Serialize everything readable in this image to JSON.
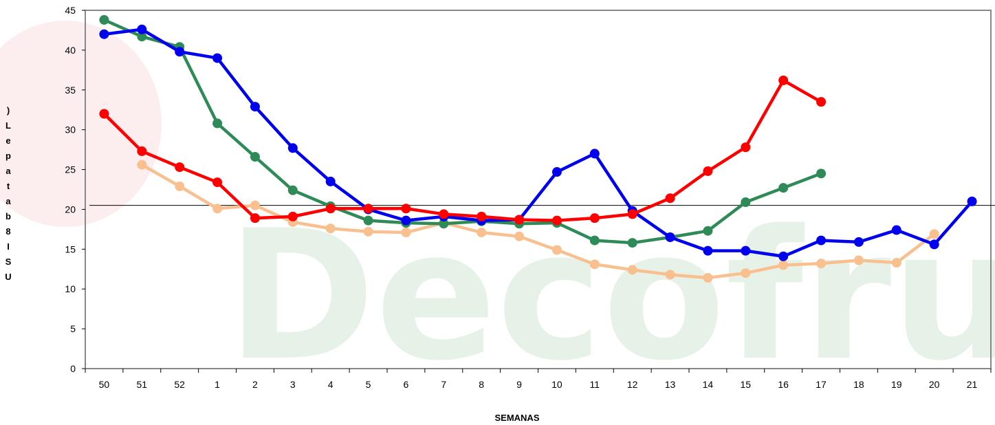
{
  "chart_data": {
    "type": "line",
    "xlabel": "SEMANAS",
    "ylabel": ")Lepatab8ISU",
    "ylim": [
      0,
      45
    ],
    "yticks": [
      0,
      5,
      10,
      15,
      20,
      25,
      30,
      35,
      40,
      45
    ],
    "categories": [
      "50",
      "51",
      "52",
      "1",
      "2",
      "3",
      "4",
      "5",
      "6",
      "7",
      "8",
      "9",
      "10",
      "11",
      "12",
      "13",
      "14",
      "15",
      "16",
      "17",
      "18",
      "19",
      "20",
      "21"
    ],
    "reference_line": 20.5,
    "watermark": "Decofrut",
    "grid": false,
    "legend": "none",
    "series": [
      {
        "color": "#f9c08f",
        "values": [
          null,
          25.6,
          22.9,
          20.1,
          20.5,
          18.4,
          17.6,
          17.2,
          17.1,
          18.3,
          17.1,
          16.6,
          14.9,
          13.1,
          12.4,
          11.8,
          11.4,
          12.0,
          13.0,
          13.2,
          13.6,
          13.3,
          16.9,
          null
        ]
      },
      {
        "color": "#2e8b57",
        "values": [
          43.8,
          41.7,
          40.4,
          30.8,
          26.6,
          22.4,
          20.4,
          18.6,
          18.3,
          18.2,
          18.5,
          18.2,
          18.3,
          16.1,
          15.8,
          16.5,
          17.3,
          20.9,
          22.7,
          24.5,
          null,
          null,
          null,
          null
        ]
      },
      {
        "color": "#0000ee",
        "values": [
          42.0,
          42.6,
          39.8,
          39.0,
          32.9,
          27.7,
          23.5,
          20.0,
          18.6,
          19.1,
          18.6,
          18.7,
          24.7,
          27.0,
          19.8,
          16.5,
          14.8,
          14.8,
          14.1,
          16.1,
          15.9,
          17.4,
          15.6,
          21.0
        ]
      },
      {
        "color": "#ff0000",
        "values": [
          32.0,
          27.3,
          25.3,
          23.4,
          18.9,
          19.1,
          20.1,
          20.1,
          20.1,
          19.4,
          19.1,
          18.7,
          18.6,
          18.9,
          19.4,
          21.4,
          24.8,
          27.8,
          36.2,
          33.5,
          null,
          null,
          null,
          null
        ]
      }
    ]
  }
}
